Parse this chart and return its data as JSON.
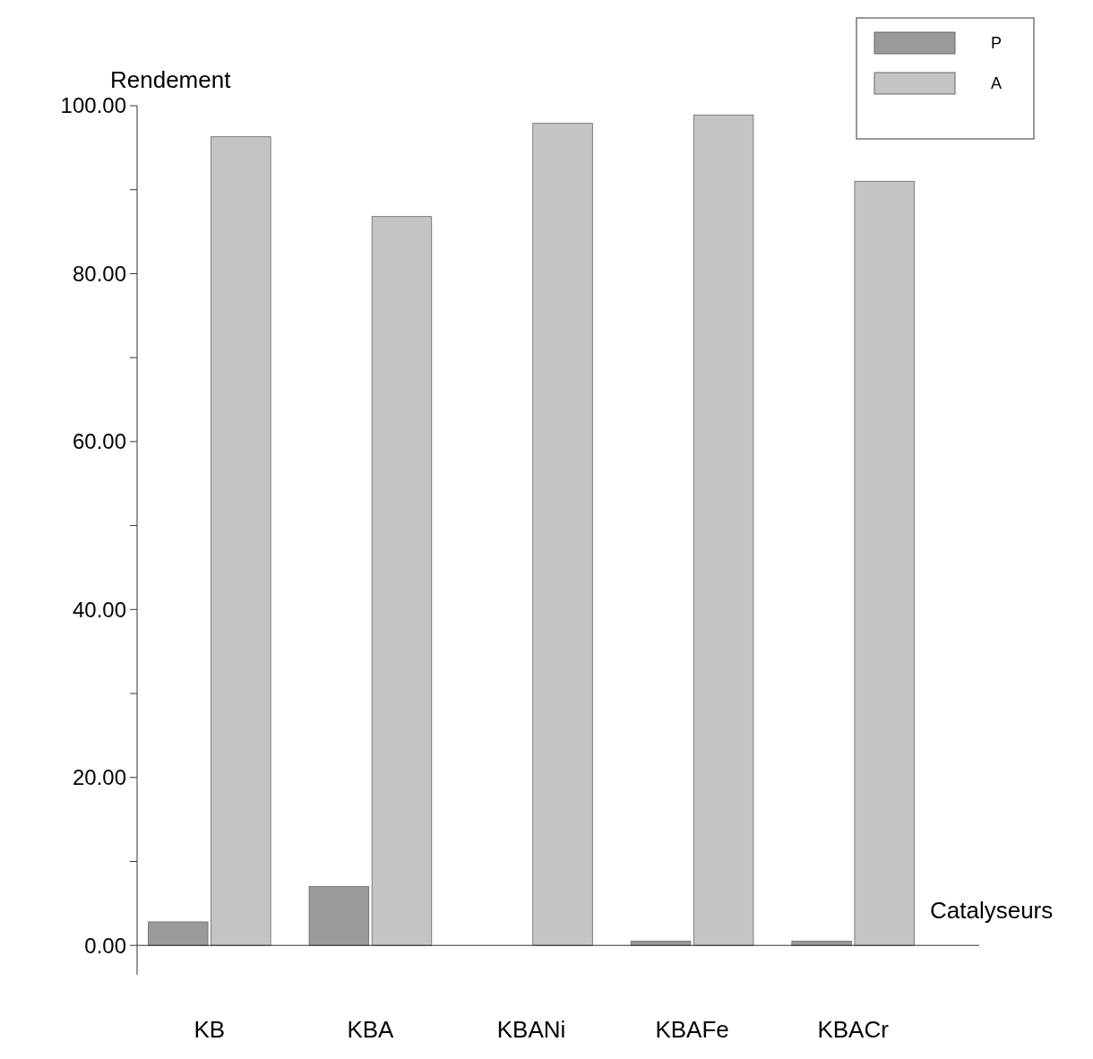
{
  "chart_data": {
    "type": "bar",
    "xlabel": "Catalyseurs",
    "ylabel": "Rendement",
    "categories": [
      "KB",
      "KBA",
      "KBANi",
      "KBAFe",
      "KBACr"
    ],
    "series": [
      {
        "name": "P",
        "color": "#9a9a9a",
        "values": [
          2.8,
          7.0,
          0,
          0.5,
          0.5
        ]
      },
      {
        "name": "A",
        "color": "#c4c4c4",
        "values": [
          96.3,
          86.8,
          97.9,
          98.9,
          91.0
        ]
      }
    ],
    "ylim": [
      -3.5,
      100
    ],
    "yticks": [
      {
        "value": 0,
        "label": "0.00"
      },
      {
        "value": 10,
        "label": null
      },
      {
        "value": 20,
        "label": "20.00"
      },
      {
        "value": 30,
        "label": null
      },
      {
        "value": 40,
        "label": "40.00"
      },
      {
        "value": 50,
        "label": null
      },
      {
        "value": 60,
        "label": "60.00"
      },
      {
        "value": 70,
        "label": null
      },
      {
        "value": 80,
        "label": "80.00"
      },
      {
        "value": 90,
        "label": null
      },
      {
        "value": 100,
        "label": "100.00"
      }
    ],
    "legend": "top right"
  }
}
